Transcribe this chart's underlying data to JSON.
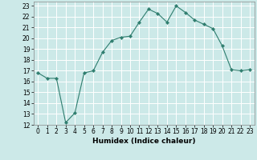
{
  "x": [
    0,
    1,
    2,
    3,
    4,
    5,
    6,
    7,
    8,
    9,
    10,
    11,
    12,
    13,
    14,
    15,
    16,
    17,
    18,
    19,
    20,
    21,
    22,
    23
  ],
  "y": [
    16.8,
    16.3,
    16.3,
    12.2,
    13.1,
    16.8,
    17.0,
    18.7,
    19.8,
    20.1,
    20.2,
    21.5,
    22.7,
    22.3,
    21.5,
    23.0,
    22.4,
    21.7,
    21.3,
    20.9,
    19.3,
    17.1,
    17.0,
    17.1
  ],
  "line_color": "#2e7d6e",
  "marker": "D",
  "marker_size": 2.2,
  "bg_color": "#cce9e8",
  "grid_color": "#ffffff",
  "xlabel": "Humidex (Indice chaleur)",
  "xlim": [
    -0.5,
    23.5
  ],
  "ylim": [
    12,
    23.4
  ],
  "xticks": [
    0,
    1,
    2,
    3,
    4,
    5,
    6,
    7,
    8,
    9,
    10,
    11,
    12,
    13,
    14,
    15,
    16,
    17,
    18,
    19,
    20,
    21,
    22,
    23
  ],
  "yticks": [
    12,
    13,
    14,
    15,
    16,
    17,
    18,
    19,
    20,
    21,
    22,
    23
  ],
  "xlabel_fontsize": 6.5,
  "tick_fontsize": 5.5
}
